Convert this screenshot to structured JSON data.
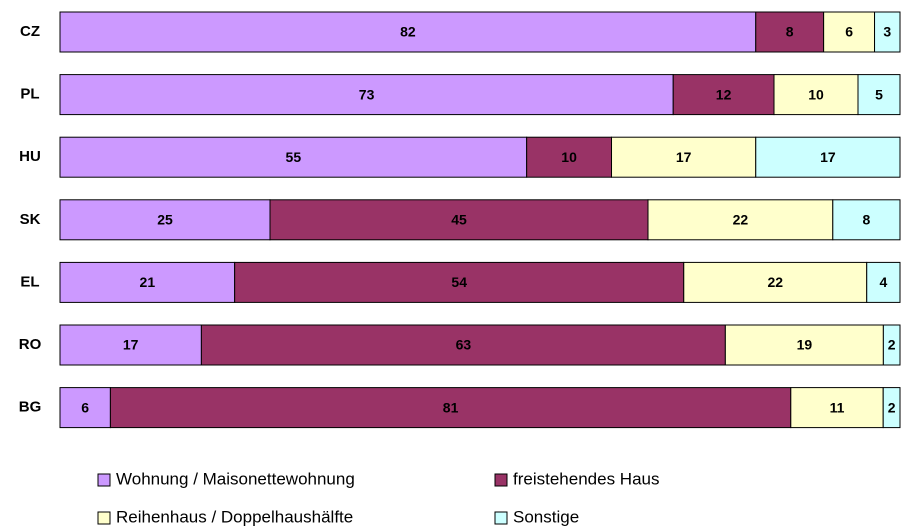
{
  "chart_data": {
    "type": "bar",
    "orientation": "horizontal",
    "stacked": true,
    "categories": [
      "CZ",
      "PL",
      "HU",
      "SK",
      "EL",
      "RO",
      "BG"
    ],
    "series": [
      {
        "name": "Wohnung / Maisonettewohnung",
        "color": "#cc99ff",
        "values": [
          82,
          73,
          55,
          25,
          21,
          17,
          6
        ]
      },
      {
        "name": "freistehendes Haus",
        "color": "#993366",
        "values": [
          8,
          12,
          10,
          45,
          54,
          63,
          81
        ]
      },
      {
        "name": "Reihenhaus / Doppelhaushälfte",
        "color": "#ffffcc",
        "values": [
          6,
          10,
          17,
          22,
          22,
          19,
          11
        ]
      },
      {
        "name": "Sonstige",
        "color": "#ccffff",
        "values": [
          3,
          5,
          17,
          8,
          4,
          2,
          2
        ]
      }
    ]
  }
}
